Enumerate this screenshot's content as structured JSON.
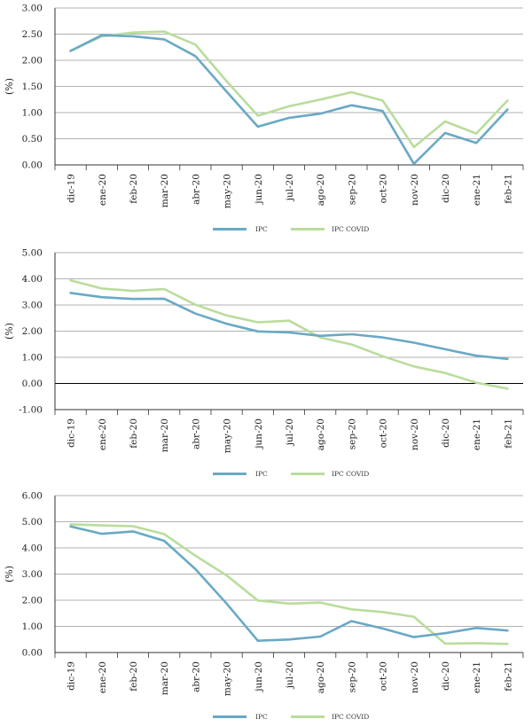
{
  "colors": {
    "ipc": "#6aa9c5",
    "ipc_covid": "#b9dd9c",
    "grid": "#999999",
    "axis": "#333333"
  },
  "chart_data": [
    {
      "type": "line",
      "ylabel": "(%)",
      "ylim": [
        0,
        3
      ],
      "yticks": [
        "0.00",
        "0.50",
        "1.00",
        "1.50",
        "2.00",
        "2.50",
        "3.00"
      ],
      "ytick_values": [
        0,
        0.5,
        1,
        1.5,
        2,
        2.5,
        3
      ],
      "categories": [
        "dic-19",
        "ene-20",
        "feb-20",
        "mar-20",
        "abr-20",
        "may-20",
        "jun-20",
        "jul-20",
        "ago-20",
        "sep-20",
        "oct-20",
        "nov-20",
        "dic-20",
        "ene-21",
        "feb-21"
      ],
      "legend": "bottom-center",
      "series": [
        {
          "name": "IPC",
          "values": [
            2.18,
            2.48,
            2.46,
            2.4,
            2.08,
            1.4,
            0.73,
            0.9,
            0.98,
            1.14,
            1.03,
            0.02,
            0.61,
            0.42,
            1.06
          ]
        },
        {
          "name": "IPC COVID",
          "values": [
            2.18,
            2.46,
            2.53,
            2.55,
            2.3,
            1.6,
            0.94,
            1.12,
            1.25,
            1.39,
            1.23,
            0.34,
            0.83,
            0.6,
            1.23
          ]
        }
      ]
    },
    {
      "type": "line",
      "ylabel": "(%)",
      "ylim": [
        -1,
        5
      ],
      "yticks": [
        "-1.00",
        "0.00",
        "1.00",
        "2.00",
        "3.00",
        "4.00",
        "5.00"
      ],
      "ytick_values": [
        -1,
        0,
        1,
        2,
        3,
        4,
        5
      ],
      "categories": [
        "dic-19",
        "ene-20",
        "feb-20",
        "mar-20",
        "abr-20",
        "may-20",
        "jun-20",
        "jul-20",
        "ago-20",
        "sep-20",
        "oct-20",
        "nov-20",
        "dic-20",
        "ene-21",
        "feb-21"
      ],
      "legend": "bottom-center",
      "series": [
        {
          "name": "IPC",
          "values": [
            3.46,
            3.3,
            3.23,
            3.24,
            2.67,
            2.28,
            1.99,
            1.95,
            1.82,
            1.88,
            1.76,
            1.56,
            1.31,
            1.06,
            0.94
          ]
        },
        {
          "name": "IPC COVID",
          "values": [
            3.94,
            3.63,
            3.54,
            3.61,
            3.01,
            2.6,
            2.34,
            2.4,
            1.76,
            1.49,
            1.04,
            0.65,
            0.4,
            0.03,
            -0.2
          ]
        }
      ]
    },
    {
      "type": "line",
      "ylabel": "(%)",
      "ylim": [
        0,
        6
      ],
      "yticks": [
        "0.00",
        "1.00",
        "2.00",
        "3.00",
        "4.00",
        "5.00",
        "6.00"
      ],
      "ytick_values": [
        0,
        1,
        2,
        3,
        4,
        5,
        6
      ],
      "categories": [
        "dic-19",
        "ene-20",
        "feb-20",
        "mar-20",
        "abr-20",
        "may-20",
        "jun-20",
        "jul-20",
        "ago-20",
        "sep-20",
        "oct-20",
        "nov-20",
        "dic-20",
        "ene-21",
        "feb-21"
      ],
      "legend": "bottom-center",
      "series": [
        {
          "name": "IPC",
          "values": [
            4.82,
            4.54,
            4.63,
            4.27,
            3.19,
            1.87,
            0.45,
            0.5,
            0.61,
            1.2,
            0.92,
            0.59,
            0.74,
            0.94,
            0.84
          ]
        },
        {
          "name": "IPC COVID",
          "values": [
            4.9,
            4.86,
            4.83,
            4.53,
            3.7,
            2.95,
            1.99,
            1.87,
            1.91,
            1.65,
            1.55,
            1.37,
            0.34,
            0.36,
            0.33
          ]
        }
      ]
    }
  ]
}
